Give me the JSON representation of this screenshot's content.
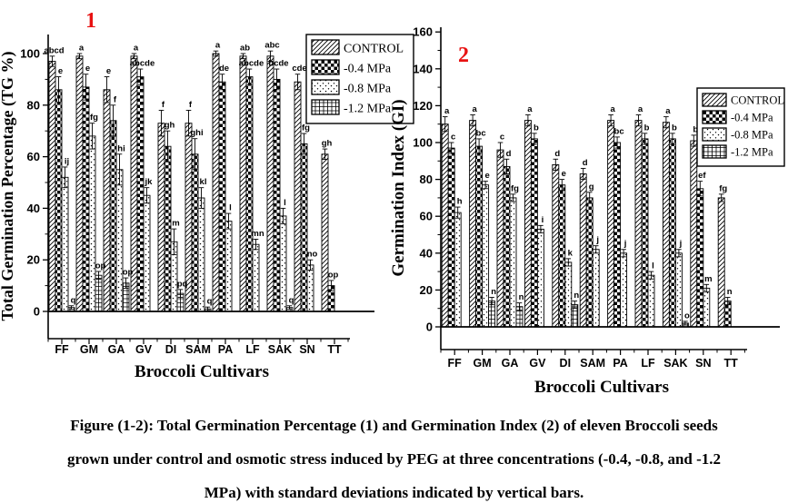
{
  "figure": {
    "accent_red": "#e81212",
    "caption_lines": [
      "Figure (1-2): Total Germination Percentage (1) and Germination Index (2) of eleven Broccoli seeds",
      "grown under control and osmotic stress induced by PEG at three concentrations (-0.4, -0.8, and -1.2",
      "MPa) with standard deviations indicated by vertical bars."
    ]
  },
  "legend": {
    "position": "upper-right",
    "items": [
      {
        "label": "CONTROL",
        "pattern": "diag"
      },
      {
        "label": "-0.4 MPa",
        "pattern": "check"
      },
      {
        "label": "-0.8 MPa",
        "pattern": "dots"
      },
      {
        "label": "-1.2 MPa",
        "pattern": "grid"
      }
    ]
  },
  "chart_data": [
    {
      "id": "tg",
      "type": "bar",
      "panel_label": "1",
      "title": "",
      "xlabel": "Broccoli Cultivars",
      "ylabel": "Total Germination Percentage (TG %)",
      "ylim": [
        0,
        110
      ],
      "yticks": [
        0,
        20,
        40,
        60,
        80,
        100
      ],
      "grid": false,
      "categories": [
        "FF",
        "GM",
        "GA",
        "GV",
        "DI",
        "SAM",
        "PA",
        "LF",
        "SAK",
        "SN",
        "TT"
      ],
      "series": [
        {
          "name": "CONTROL",
          "pattern": "diag",
          "values": [
            97,
            99,
            86,
            99,
            73,
            73,
            100,
            99,
            99,
            89,
            61
          ],
          "errors": [
            2,
            1,
            5,
            1,
            5,
            5,
            1,
            1,
            2,
            3,
            2
          ],
          "letters": [
            "abcd",
            "a",
            "e",
            "a",
            "f",
            "f",
            "a",
            "ab",
            "abc",
            "cde",
            "gh"
          ]
        },
        {
          "name": "-0.4 MPa",
          "pattern": "check",
          "values": [
            86,
            87,
            74,
            91,
            64,
            61,
            89,
            91,
            90,
            65,
            10
          ],
          "errors": [
            5,
            5,
            6,
            3,
            6,
            6,
            3,
            3,
            4,
            4,
            2
          ],
          "letters": [
            "e",
            "e",
            "f",
            "abcde",
            "gh",
            "ghi",
            "de",
            "abcde",
            "bcde",
            "fg",
            "op"
          ]
        },
        {
          "name": "-0.8 MPa",
          "pattern": "dots",
          "values": [
            52,
            68,
            55,
            45,
            27,
            44,
            35,
            26,
            37,
            18,
            null
          ],
          "errors": [
            4,
            5,
            6,
            3,
            5,
            4,
            3,
            2,
            3,
            2,
            null
          ],
          "letters": [
            "ij",
            "fg",
            "hi",
            "jk",
            "m",
            "kl",
            "l",
            "mn",
            "l",
            "no",
            ""
          ]
        },
        {
          "name": "-1.2 MPa",
          "pattern": "grid",
          "values": [
            1.5,
            14,
            11,
            null,
            7,
            1,
            null,
            null,
            1.5,
            null,
            null
          ],
          "errors": [
            0.7,
            1.5,
            2,
            null,
            1.5,
            0.7,
            null,
            null,
            0.7,
            null,
            null
          ],
          "letters": [
            "q",
            "op",
            "op",
            "",
            "pq",
            "q",
            "",
            "",
            "q",
            "",
            ""
          ]
        }
      ]
    },
    {
      "id": "gi",
      "type": "bar",
      "panel_label": "2",
      "title": "",
      "xlabel": "Broccoli Cultivars",
      "ylabel": "Germination Index (GI)",
      "ylim": [
        0,
        160
      ],
      "yticks": [
        0,
        20,
        40,
        60,
        80,
        100,
        120,
        140,
        160
      ],
      "grid": false,
      "categories": [
        "FF",
        "GM",
        "GA",
        "GV",
        "DI",
        "SAM",
        "PA",
        "LF",
        "SAK",
        "SN",
        "TT"
      ],
      "series": [
        {
          "name": "CONTROL",
          "pattern": "diag",
          "values": [
            110,
            112,
            96,
            112,
            88,
            83,
            112,
            112,
            111,
            101,
            70
          ],
          "errors": [
            4,
            3,
            4,
            3,
            3,
            3,
            3,
            3,
            3,
            3,
            2
          ],
          "letters": [
            "a",
            "a",
            "c",
            "a",
            "d",
            "d",
            "a",
            "a",
            "a",
            "b",
            "fg"
          ]
        },
        {
          "name": "-0.4 MPa",
          "pattern": "check",
          "values": [
            97,
            98,
            87,
            102,
            77,
            70,
            100,
            102,
            102,
            75,
            14
          ],
          "errors": [
            3,
            4,
            4,
            3,
            3,
            3,
            3,
            3,
            3,
            4,
            2
          ],
          "letters": [
            "c",
            "bc",
            "d",
            "b",
            "e",
            "g",
            "bc",
            "b",
            "b",
            "ef",
            "n"
          ]
        },
        {
          "name": "-0.8 MPa",
          "pattern": "dots",
          "values": [
            62,
            77,
            70,
            53,
            35,
            42,
            40,
            28,
            40,
            21,
            null
          ],
          "errors": [
            3,
            2,
            2,
            2,
            2,
            2,
            2,
            2,
            2,
            2,
            null
          ],
          "letters": [
            "h",
            "e",
            "fg",
            "i",
            "k",
            "j",
            "j",
            "l",
            "j",
            "m",
            ""
          ]
        },
        {
          "name": "-1.2 MPa",
          "pattern": "grid",
          "values": [
            null,
            14,
            11,
            null,
            12,
            null,
            null,
            null,
            2,
            null,
            null
          ],
          "errors": [
            null,
            2,
            2,
            null,
            2,
            null,
            null,
            null,
            1,
            null,
            null
          ],
          "letters": [
            "",
            "n",
            "n",
            "",
            "n",
            "",
            "",
            "",
            "o",
            "",
            ""
          ]
        }
      ]
    }
  ]
}
